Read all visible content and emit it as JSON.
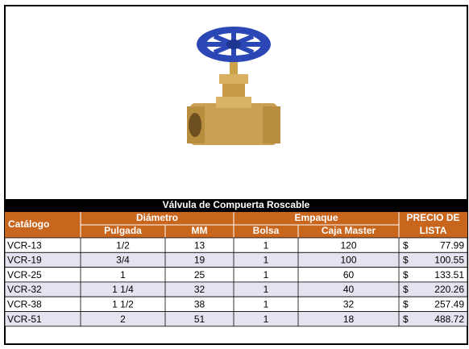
{
  "header": {
    "title": "Válvula de Compuerta Roscable"
  },
  "table": {
    "headers": {
      "catalog": "Catálogo",
      "diameter": "Diámetro",
      "inch": "Pulgada",
      "mm": "MM",
      "packing": "Empaque",
      "bag": "Bolsa",
      "master": "Caja Master",
      "price": [
        "PRECIO DE",
        "LISTA"
      ]
    },
    "rows": [
      [
        "VCR-13",
        "1/2",
        "13",
        "1",
        "120",
        "$",
        "77.99"
      ],
      [
        "VCR-19",
        "3/4",
        "19",
        "1",
        "100",
        "$",
        "100.55"
      ],
      [
        "VCR-25",
        "1",
        "25",
        "1",
        "60",
        "$",
        "133.51"
      ],
      [
        "VCR-32",
        "1 1/4",
        "32",
        "1",
        "40",
        "$",
        "220.26"
      ],
      [
        "VCR-38",
        "1 1/2",
        "38",
        "1",
        "32",
        "$",
        "257.49"
      ],
      [
        "VCR-51",
        "2",
        "51",
        "1",
        "18",
        "$",
        "488.72"
      ]
    ]
  }
}
